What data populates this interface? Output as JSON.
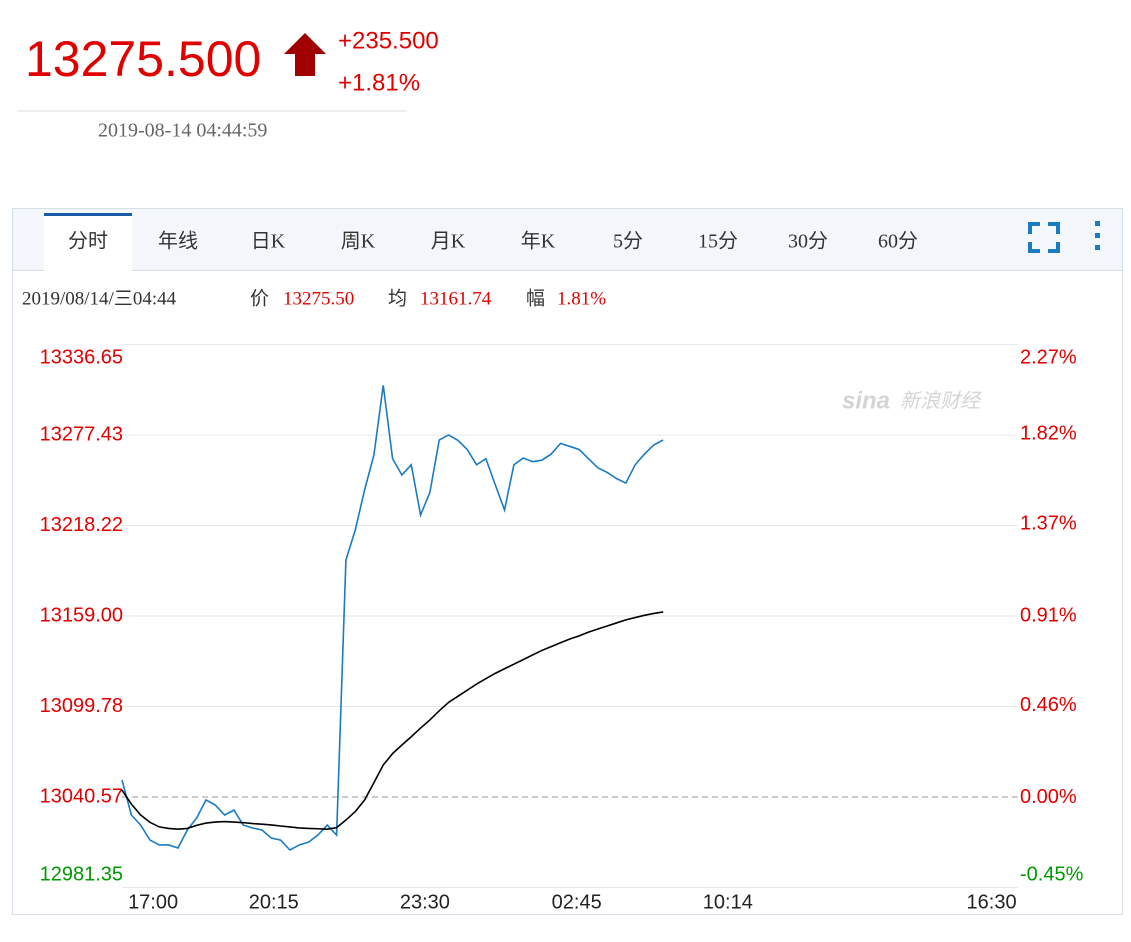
{
  "header": {
    "price": "13275.500",
    "change": "+235.500",
    "change_percent": "+1.81%",
    "timestamp": "2019-08-14 04:44:59"
  },
  "tabs": [
    "分时",
    "年线",
    "日K",
    "周K",
    "月K",
    "年K",
    "5分",
    "15分",
    "30分",
    "60分"
  ],
  "active_tab": 0,
  "info": {
    "datetime": "2019/08/14/三04:44",
    "price_label": "价",
    "price": "13275.50",
    "avg_label": "均",
    "avg": "13161.74",
    "range_label": "幅",
    "range": "1.81%"
  },
  "watermark": {
    "logo": "sina",
    "text": "新浪财经"
  },
  "chart_data": {
    "type": "line",
    "x": [
      0,
      15,
      30,
      45,
      60,
      75,
      90,
      105,
      120,
      135,
      150,
      165,
      180,
      195,
      210,
      225,
      240,
      255,
      270,
      285,
      300,
      315,
      330,
      345,
      360,
      375,
      390,
      405,
      420,
      435,
      450,
      465,
      480,
      495,
      510,
      525,
      540,
      555,
      570,
      585,
      600,
      615,
      630,
      645,
      660,
      675,
      690,
      705,
      720,
      735,
      750,
      765,
      780,
      795,
      810,
      825,
      840,
      855,
      870
    ],
    "xlim": [
      0,
      1440
    ],
    "xticks": [
      {
        "value": 50,
        "label": "17:00"
      },
      {
        "value": 244,
        "label": "20:15"
      },
      {
        "value": 487,
        "label": "23:30"
      },
      {
        "value": 731,
        "label": "02:45"
      },
      {
        "value": 974,
        "label": "10:14"
      },
      {
        "value": 1398,
        "label": "16:30"
      }
    ],
    "ylim": [
      12981.35,
      13336.65
    ],
    "yticks": [
      12981.35,
      13040.57,
      13099.78,
      {
        "value": 13159.0,
        "label": "13159.00"
      },
      13218.22,
      13277.43,
      13336.65
    ],
    "y2lim": [
      -0.45,
      2.27
    ],
    "y2ticks": [
      {
        "value": -0.45,
        "label": "-0.45%"
      },
      {
        "value": 0,
        "label": "0.00%"
      },
      {
        "value": 0.46,
        "label": "0.46%"
      },
      {
        "value": 0.91,
        "label": "0.91%"
      },
      {
        "value": 1.37,
        "label": "1.37%"
      },
      {
        "value": 1.82,
        "label": "1.82%"
      },
      {
        "value": 2.27,
        "label": "2.27%"
      }
    ],
    "reference_line": 13040.57,
    "grid": true,
    "up_color": "#e00000",
    "down_color": "#009900",
    "series": [
      {
        "color": "#1a7bc4",
        "values": [
          13051.7,
          13028.8,
          13022.2,
          13012.4,
          13009.2,
          13009.2,
          13007.2,
          13019.0,
          13026.8,
          13038.6,
          13035.3,
          13028.8,
          13032.0,
          13022.2,
          13020.3,
          13019.0,
          13013.7,
          13012.4,
          13005.9,
          13009.2,
          13011.0,
          13015.7,
          13022.2,
          13015.7,
          13195.7,
          13215.3,
          13241.5,
          13264.4,
          13310.0,
          13262.0,
          13251.3,
          13258.0,
          13225.1,
          13240.0,
          13274.2,
          13277.5,
          13274.0,
          13268.0,
          13258.0,
          13262.0,
          13245.0,
          13228.4,
          13258.0,
          13262.4,
          13260.0,
          13261.0,
          13265.0,
          13272.0,
          13270.0,
          13268.0,
          13262.0,
          13256.0,
          13253.0,
          13249.0,
          13246.0,
          13258.0,
          13265.0,
          13271.0,
          13274.2
        ]
      },
      {
        "color": "#000000",
        "values": [
          13045.1,
          13036.0,
          13028.8,
          13024.0,
          13021.0,
          13020.0,
          13019.5,
          13020.0,
          13022.0,
          13023.5,
          13024.2,
          13024.5,
          13024.2,
          13023.8,
          13023.2,
          13022.8,
          13022.3,
          13021.6,
          13021.0,
          13020.3,
          13020.0,
          13019.8,
          13019.5,
          13020.5,
          13025.5,
          13031.0,
          13038.6,
          13050.0,
          13061.5,
          13069.0,
          13074.6,
          13080.0,
          13085.7,
          13091.0,
          13097.0,
          13102.5,
          13106.5,
          13110.5,
          13114.5,
          13118.0,
          13121.5,
          13124.5,
          13127.5,
          13130.5,
          13133.5,
          13136.5,
          13139.0,
          13141.5,
          13144.0,
          13146.0,
          13148.5,
          13150.5,
          13152.5,
          13154.5,
          13156.5,
          13158.0,
          13159.5,
          13160.7,
          13161.7
        ]
      }
    ]
  }
}
